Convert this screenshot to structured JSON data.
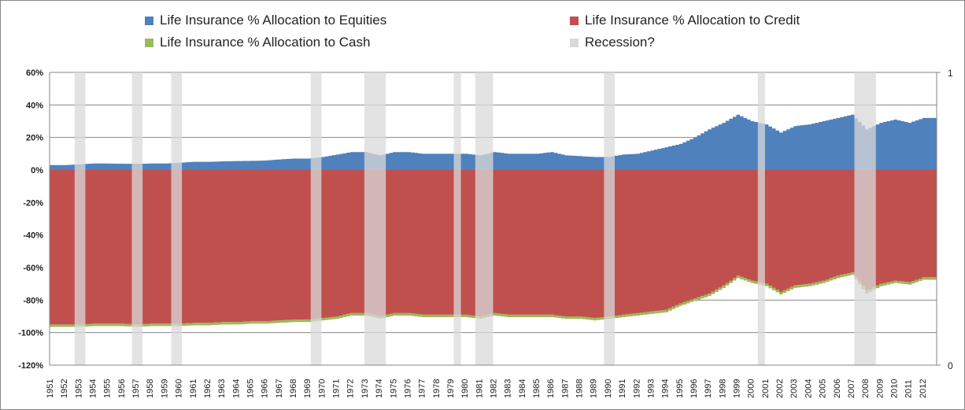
{
  "chart_data": {
    "type": "area",
    "title": "",
    "legend": [
      {
        "name": "Life Insurance % Allocation to Equities",
        "color": "#4f81bd"
      },
      {
        "name": "Life Insurance % Allocation to Credit",
        "color": "#c0504d"
      },
      {
        "name": "Life Insurance % Allocation to Cash",
        "color": "#9bbb59"
      },
      {
        "name": "Recession?",
        "color": "#d9d9d9"
      }
    ],
    "legend_position": "top",
    "ylim": [
      -120,
      60
    ],
    "y_ticks": [
      "60%",
      "40%",
      "20%",
      "0%",
      "-20%",
      "-40%",
      "-60%",
      "-80%",
      "-100%",
      "-120%"
    ],
    "y_tick_values": [
      60,
      40,
      20,
      0,
      -20,
      -40,
      -60,
      -80,
      -100,
      -120
    ],
    "y2_ticks": [
      "1",
      "0"
    ],
    "years": [
      1951,
      1952,
      1953,
      1954,
      1955,
      1956,
      1957,
      1958,
      1959,
      1960,
      1961,
      1962,
      1963,
      1964,
      1965,
      1966,
      1967,
      1968,
      1969,
      1970,
      1971,
      1972,
      1973,
      1974,
      1975,
      1976,
      1977,
      1978,
      1979,
      1980,
      1981,
      1982,
      1983,
      1984,
      1985,
      1986,
      1987,
      1988,
      1989,
      1990,
      1991,
      1992,
      1993,
      1994,
      1995,
      1996,
      1997,
      1998,
      1999,
      2000,
      2001,
      2002,
      2003,
      2004,
      2005,
      2006,
      2007,
      2008,
      2009,
      2010,
      2011,
      2012
    ],
    "series": [
      {
        "name": "Life Insurance % Allocation to Equities",
        "values": [
          3,
          3,
          3.5,
          4,
          4,
          3.8,
          3.8,
          4,
          4,
          4.5,
          5,
          5,
          5.3,
          5.5,
          5.6,
          5.8,
          6.5,
          7,
          7,
          8,
          9.5,
          11,
          11,
          9,
          11,
          11,
          10,
          10,
          10,
          10,
          9,
          11,
          10,
          10,
          10,
          11,
          9,
          8.5,
          8,
          8,
          9.5,
          10,
          12,
          14,
          16,
          20,
          25,
          29,
          34,
          30,
          28,
          23,
          27,
          28,
          30,
          32,
          34,
          25,
          29,
          31,
          29,
          32
        ]
      },
      {
        "name": "Life Insurance % Allocation to Credit",
        "values": [
          -95,
          -95,
          -95,
          -94.5,
          -94.5,
          -94.5,
          -95,
          -94.5,
          -94.5,
          -94.5,
          -94,
          -94,
          -93.5,
          -93.5,
          -93,
          -93,
          -92.5,
          -92,
          -92,
          -91,
          -90,
          -88,
          -88,
          -90,
          -88,
          -88,
          -89,
          -89,
          -89,
          -89,
          -90,
          -88,
          -89,
          -89,
          -89,
          -89,
          -90,
          -90,
          -91,
          -90,
          -89,
          -88,
          -87,
          -86,
          -82,
          -79,
          -76,
          -71,
          -65,
          -68,
          -70,
          -75,
          -71,
          -70,
          -68,
          -65,
          -63,
          -74,
          -70,
          -68,
          -69,
          -66
        ]
      },
      {
        "name": "Life Insurance % Allocation to Cash",
        "values": [
          -1.5,
          -1.5,
          -1.5,
          -1.5,
          -1.5,
          -1.5,
          -1.5,
          -1.5,
          -1.5,
          -1.5,
          -1.5,
          -1.5,
          -1.5,
          -1.5,
          -1.5,
          -1.5,
          -1.5,
          -1.5,
          -1.5,
          -1.5,
          -1.5,
          -1.5,
          -1.5,
          -1.5,
          -1.5,
          -1.5,
          -1.5,
          -1.5,
          -1.5,
          -1.5,
          -1.5,
          -1.5,
          -1.5,
          -1.5,
          -1.5,
          -1.5,
          -1.5,
          -1.5,
          -1.5,
          -1.5,
          -1.5,
          -1.5,
          -1.5,
          -1.5,
          -1.5,
          -1.5,
          -1.5,
          -1.5,
          -1.5,
          -1.5,
          -1.5,
          -1.5,
          -1.5,
          -1.5,
          -1.5,
          -1.5,
          -1.5,
          -2,
          -1.5,
          -1.5,
          -1.5,
          -1.5
        ]
      }
    ],
    "recessions": [
      [
        1952.75,
        1953.5
      ],
      [
        1956.75,
        1957.5
      ],
      [
        1959.5,
        1960.25
      ],
      [
        1969.25,
        1970
      ],
      [
        1973,
        1974.5
      ],
      [
        1979.25,
        1979.75
      ],
      [
        1980.75,
        1982
      ],
      [
        1989.75,
        1990.5
      ],
      [
        2000.5,
        2001
      ],
      [
        2007.25,
        2008.75
      ]
    ],
    "grid": true
  }
}
